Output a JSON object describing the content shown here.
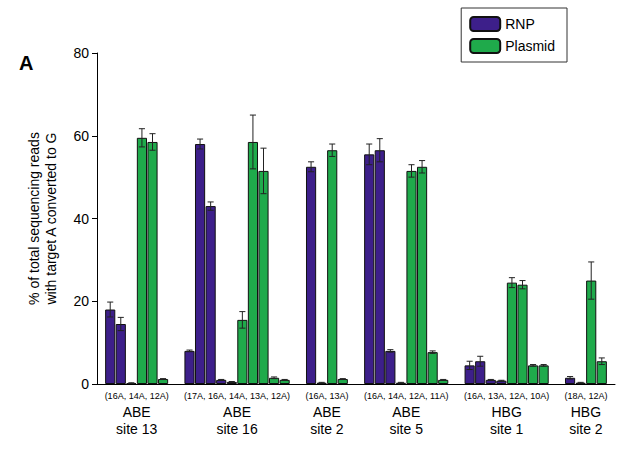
{
  "chart_data": {
    "type": "bar",
    "annotation": "A",
    "ylabel": "% of total sequencing reads\nwith target A converted to G",
    "categories": [
      "ABE\nsite 13",
      "ABE\nsite 16",
      "ABE\nsite 2",
      "ABE\nsite 5",
      "HBG\nsite 1",
      "HBG\nsite 2"
    ],
    "subcategories": [
      "(16A, 14A, 12A)",
      "(17A, 16A, 14A, 13A, 12A)",
      "(16A, 13A)",
      "(16A, 14A, 12A, 11A)",
      "(16A, 13A, 12A, 10A)",
      "(18A, 12A)"
    ],
    "series": [
      {
        "name": "RNP",
        "color": "#3d1f8a",
        "values": [
          [
            18.0,
            14.5,
            0.2
          ],
          [
            8.0,
            58.0,
            43.0,
            1.0,
            0.5
          ],
          [
            52.5,
            0.3
          ],
          [
            55.5,
            56.5,
            8.0,
            0.3
          ],
          [
            4.5,
            5.5,
            1.0,
            0.8
          ],
          [
            1.5,
            0.3
          ]
        ],
        "errors": [
          [
            1.8,
            1.6,
            0.1
          ],
          [
            0.2,
            1.2,
            1.0,
            0.1,
            0.1
          ],
          [
            1.2,
            0.1
          ],
          [
            2.5,
            2.8,
            0.3,
            0.1
          ],
          [
            1.0,
            1.2,
            0.1,
            0.1
          ],
          [
            0.3,
            0.1
          ]
        ]
      },
      {
        "name": "Plasmid",
        "color": "#1faa4b",
        "values": [
          [
            59.5,
            58.5,
            1.2
          ],
          [
            15.5,
            58.5,
            51.5,
            1.5,
            1.0
          ],
          [
            56.5,
            1.2
          ],
          [
            51.5,
            52.5,
            7.7,
            1.0
          ],
          [
            24.5,
            24.0,
            4.5,
            4.5
          ],
          [
            25.0,
            5.5
          ]
        ],
        "errors": [
          [
            2.2,
            2.0,
            0.1
          ],
          [
            2.0,
            6.5,
            5.5,
            0.2,
            0.1
          ],
          [
            1.5,
            0.1
          ],
          [
            1.5,
            1.5,
            0.3,
            0.1
          ],
          [
            1.2,
            1.0,
            0.2,
            0.2
          ],
          [
            4.5,
            0.8
          ]
        ]
      }
    ],
    "ylim": [
      0,
      80
    ],
    "yticks": [
      0,
      20,
      40,
      60,
      80
    ],
    "grid": false,
    "legend": "upper right"
  }
}
